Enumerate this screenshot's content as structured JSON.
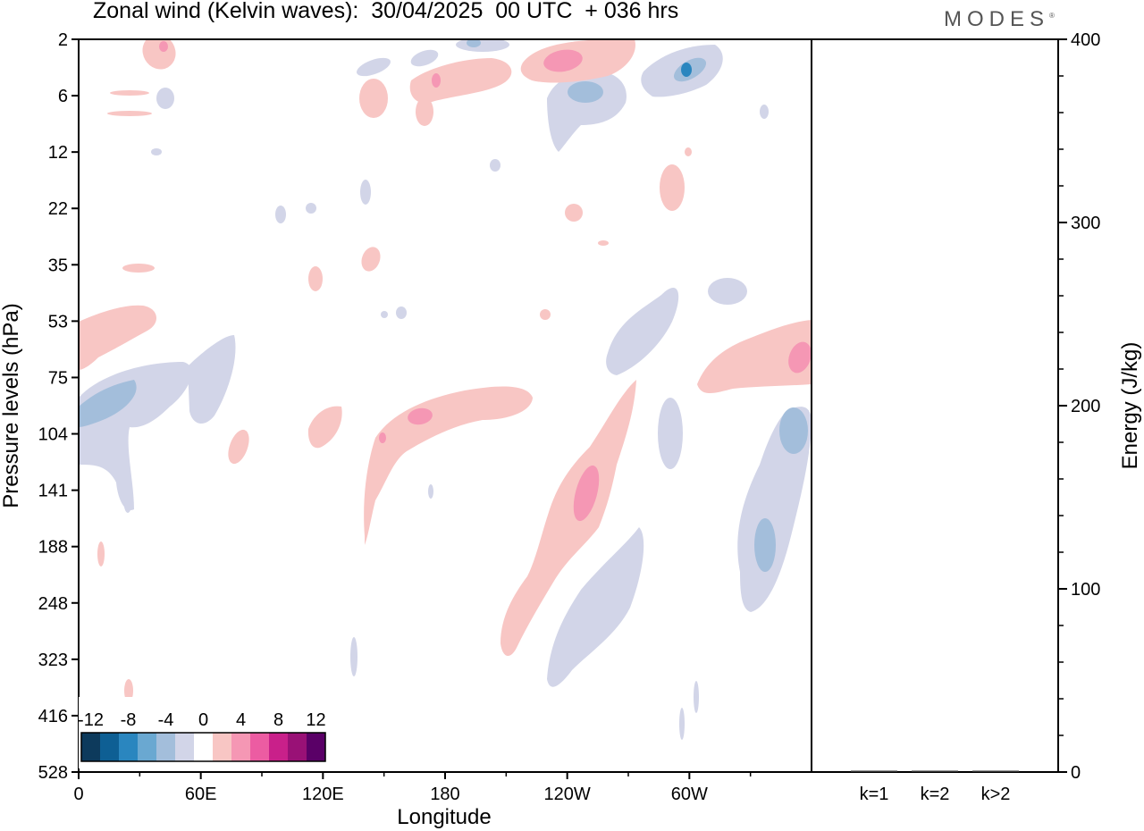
{
  "header": {
    "title": "Zonal wind (Kelvin waves):  30/04/2025  00 UTC  + 036 hrs",
    "brand": "MODES"
  },
  "colors": {
    "contour_levels": [
      "#0d3a5c",
      "#0e5f94",
      "#2a86bf",
      "#6aa8d1",
      "#a3bedb",
      "#d2d5e8",
      "#ffffff",
      "#f8c6c4",
      "#f597b4",
      "#ec5ca2",
      "#c9208a",
      "#991176",
      "#5a0067"
    ],
    "frame": "#000000"
  },
  "chart_data": [
    {
      "type": "heatmap",
      "title": "Zonal wind (Kelvin waves):  30/04/2025  00 UTC  + 036 hrs",
      "xlabel": "Longitude",
      "ylabel": "Pressure levels (hPa)",
      "x_ticks": [
        "0",
        "60E",
        "120E",
        "180",
        "120W",
        "60W"
      ],
      "y_ticks": [
        "2",
        "6",
        "12",
        "22",
        "35",
        "53",
        "75",
        "104",
        "141",
        "188",
        "248",
        "323",
        "416",
        "528"
      ],
      "colorbar": {
        "tick_labels": [
          "-12",
          "-8",
          "-4",
          "0",
          "4",
          "8",
          "12"
        ],
        "levels": [
          -12,
          -10,
          -8,
          -6,
          -4,
          -2,
          0,
          2,
          4,
          6,
          8,
          10,
          12
        ]
      },
      "features": [
        {
          "lon": 10,
          "p": 95,
          "value": -4
        },
        {
          "lon": 130,
          "p": 115,
          "value": 6
        },
        {
          "lon": 230,
          "p": 130,
          "value": 6
        },
        {
          "lon": 235,
          "p": 250,
          "value": 2
        },
        {
          "lon": 255,
          "p": 280,
          "value": -2
        },
        {
          "lon": 333,
          "p": 68,
          "value": 6
        },
        {
          "lon": 330,
          "p": 110,
          "value": -4
        },
        {
          "lon": 320,
          "p": 190,
          "value": -4
        },
        {
          "lon": 228,
          "p": 4,
          "value": 6
        },
        {
          "lon": 285,
          "p": 4,
          "value": -6
        }
      ]
    },
    {
      "type": "bar",
      "xlabel": "",
      "ylabel": "Energy (J/kg)",
      "categories": [
        "k=1",
        "k=2",
        "k>2"
      ],
      "values": [
        0,
        0,
        0
      ],
      "ylim": [
        0,
        400
      ],
      "y_ticks": [
        "0",
        "100",
        "200",
        "300",
        "400"
      ]
    }
  ]
}
